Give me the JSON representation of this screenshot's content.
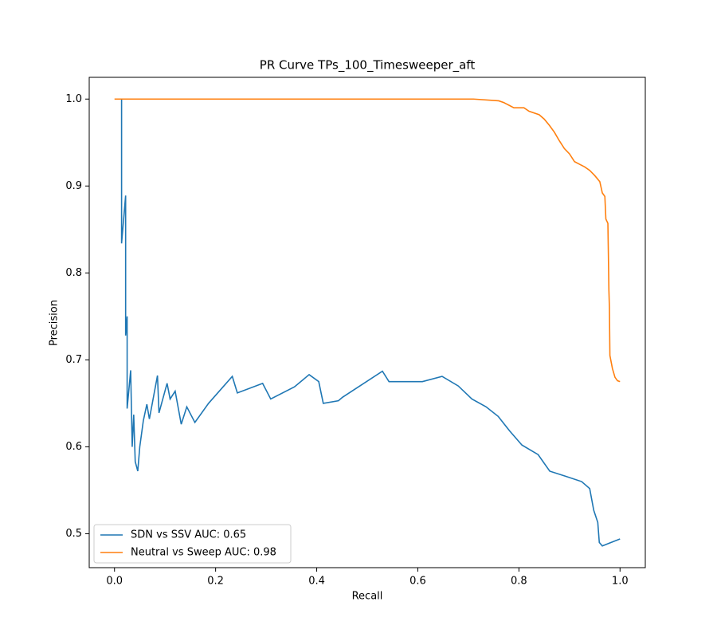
{
  "chart_data": {
    "type": "line",
    "title": "PR Curve TPs_100_Timesweeper_aft",
    "x_label": "Recall",
    "y_label": "Precision",
    "xlim": [
      -0.05,
      1.05
    ],
    "ylim": [
      0.461,
      1.025
    ],
    "xticks": [
      {
        "value": 0,
        "label": "0.0"
      },
      0.2,
      0.4,
      0.6,
      0.8,
      {
        "value": 1,
        "label": "1.0"
      }
    ],
    "yticks": [
      0.5,
      0.6,
      0.7,
      0.8,
      0.9,
      {
        "value": 1,
        "label": "1.0"
      }
    ],
    "legend": "lower left",
    "series": [
      {
        "name": "SDN vs SSV AUC: 0.65",
        "color": "#1f77b4",
        "x": [
          0.014,
          0.014,
          0.022,
          0.022,
          0.025,
          0.025,
          0.032,
          0.035,
          0.038,
          0.041,
          0.046,
          0.05,
          0.057,
          0.064,
          0.069,
          0.085,
          0.088,
          0.104,
          0.11,
          0.12,
          0.132,
          0.143,
          0.159,
          0.186,
          0.233,
          0.243,
          0.293,
          0.309,
          0.356,
          0.385,
          0.404,
          0.413,
          0.443,
          0.451,
          0.53,
          0.543,
          0.609,
          0.648,
          0.68,
          0.707,
          0.735,
          0.759,
          0.782,
          0.806,
          0.838,
          0.861,
          0.893,
          0.924,
          0.94,
          0.948,
          0.956,
          0.959,
          0.965,
          1.0
        ],
        "values": [
          1.0,
          0.834,
          0.889,
          0.728,
          0.75,
          0.644,
          0.688,
          0.6,
          0.637,
          0.583,
          0.572,
          0.6,
          0.63,
          0.649,
          0.632,
          0.682,
          0.639,
          0.673,
          0.655,
          0.664,
          0.626,
          0.646,
          0.628,
          0.65,
          0.681,
          0.662,
          0.673,
          0.655,
          0.669,
          0.683,
          0.675,
          0.65,
          0.653,
          0.657,
          0.687,
          0.675,
          0.675,
          0.681,
          0.67,
          0.655,
          0.646,
          0.635,
          0.618,
          0.602,
          0.591,
          0.572,
          0.566,
          0.56,
          0.552,
          0.527,
          0.513,
          0.49,
          0.486,
          0.494
        ]
      },
      {
        "name": "Neutral vs Sweep AUC: 0.98",
        "color": "#ff7f0e",
        "x": [
          0.0,
          0.71,
          0.76,
          0.77,
          0.78,
          0.79,
          0.81,
          0.82,
          0.84,
          0.85,
          0.86,
          0.87,
          0.88,
          0.89,
          0.9,
          0.91,
          0.92,
          0.93,
          0.94,
          0.95,
          0.96,
          0.965,
          0.97,
          0.972,
          0.976,
          0.977,
          0.978,
          0.979,
          0.98,
          0.985,
          0.99,
          0.995,
          1.0
        ],
        "values": [
          1.0,
          1.0,
          0.998,
          0.996,
          0.993,
          0.99,
          0.99,
          0.986,
          0.982,
          0.977,
          0.97,
          0.962,
          0.952,
          0.943,
          0.937,
          0.928,
          0.925,
          0.922,
          0.918,
          0.912,
          0.905,
          0.892,
          0.888,
          0.862,
          0.857,
          0.82,
          0.78,
          0.76,
          0.705,
          0.69,
          0.68,
          0.676,
          0.675
        ]
      }
    ]
  }
}
